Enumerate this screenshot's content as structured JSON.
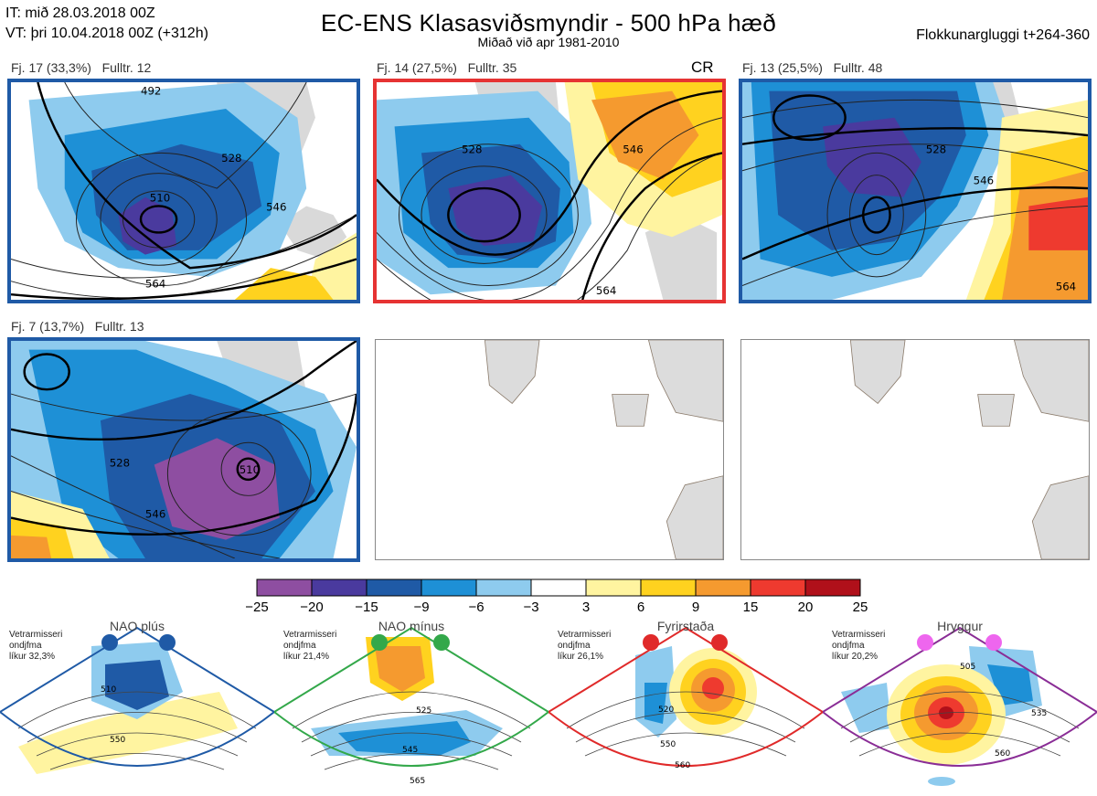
{
  "header": {
    "it_line": "IT: mið 28.03.2018 00Z",
    "vt_line": "VT: þri 10.04.2018 00Z  (+312h)",
    "title": "EC-ENS Klasasviðsmyndir - 500 hPa hæð",
    "subtitle": "Miðað við apr 1981-2010",
    "window": "Flokkunargluggi t+264-360"
  },
  "clusters": [
    {
      "label": "Fj. 17 (33,3%)   Fulltr. 12",
      "frame_color": "#1f5aa6",
      "contours": [
        "492",
        "510",
        "528",
        "546",
        "564"
      ]
    },
    {
      "label": "Fj. 14 (27,5%)   Fulltr. 35",
      "frame_color": "#e63333",
      "badge": "CR",
      "contours": [
        "528",
        "546",
        "564"
      ]
    },
    {
      "label": "Fj. 13 (25,5%)   Fulltr. 48",
      "frame_color": "#1f5aa6",
      "contours": [
        "528",
        "546",
        "564"
      ]
    },
    {
      "label": "Fj. 7 (13,7%)   Fulltr. 13",
      "frame_color": "#1f5aa6",
      "contours": [
        "510",
        "528",
        "546"
      ]
    }
  ],
  "colorbar": {
    "ticks": [
      "−25",
      "−20",
      "−15",
      "−9",
      "−6",
      "−3",
      "3",
      "6",
      "9",
      "15",
      "20",
      "25"
    ],
    "colors": [
      "#8e4ea1",
      "#4a3a9e",
      "#1f5aa6",
      "#1e90d6",
      "#8ecbee",
      "#ffffff",
      "#fff4a0",
      "#ffd21f",
      "#f59a2f",
      "#ee3a2f",
      "#b0101a"
    ]
  },
  "regimes": [
    {
      "name": "NAO plús",
      "note": [
        "Vetrarmisseri",
        "ondjfma",
        "líkur 32,3%"
      ],
      "color": "#1f5aa6",
      "contours": [
        "510",
        "550"
      ]
    },
    {
      "name": "NAO mínus",
      "note": [
        "Vetrarmisseri",
        "ondjfma",
        "líkur 21,4%"
      ],
      "color": "#33a84a",
      "contours": [
        "525",
        "545",
        "565"
      ]
    },
    {
      "name": "Fyrirstaða",
      "note": [
        "Vetrarmisseri",
        "ondjfma",
        "líkur 26,1%"
      ],
      "color": "#e02a2a",
      "contours": [
        "520",
        "550",
        "560"
      ]
    },
    {
      "name": "Hryggur",
      "note": [
        "Vetrarmisseri",
        "ondjfma",
        "líkur 20,2%"
      ],
      "color": "#8a2d96",
      "dot_color": "#ee66ee",
      "contours": [
        "505",
        "535",
        "560"
      ]
    }
  ]
}
